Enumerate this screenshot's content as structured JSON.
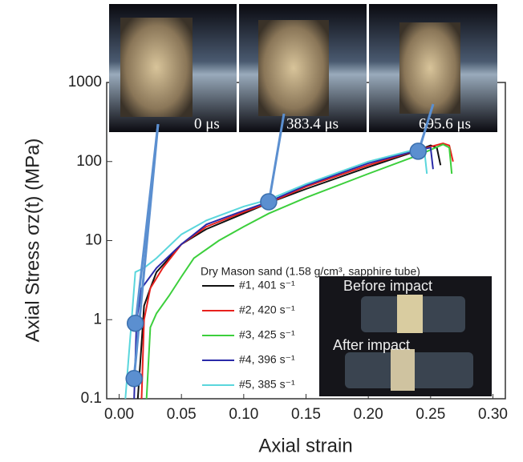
{
  "chart_data": {
    "type": "line",
    "x_label": "Axial strain",
    "y_label": "Axial Stress σz(t) (MPa)",
    "xlim": [
      -0.01,
      0.31
    ],
    "ylim": [
      0.1,
      1000
    ],
    "log_y": true,
    "grid": false,
    "xticks": [
      {
        "value": 0,
        "label": "0.00"
      },
      {
        "value": 0.05,
        "label": "0.05"
      },
      {
        "value": 0.1,
        "label": "0.10"
      },
      {
        "value": 0.15,
        "label": "0.15"
      },
      {
        "value": 0.2,
        "label": "0.20"
      },
      {
        "value": 0.25,
        "label": "0.25"
      },
      {
        "value": 0.3,
        "label": "0.30"
      }
    ],
    "yticks": [
      0.1,
      1,
      10,
      100,
      1000
    ],
    "legend_title": "Dry Mason sand (1.58 g/cm³, sapphire tube)",
    "series": [
      {
        "name": "#1, 401 s⁻¹",
        "color": "#111111",
        "x": [
          0.015,
          0.018,
          0.02,
          0.025,
          0.03,
          0.04,
          0.05,
          0.07,
          0.1,
          0.12,
          0.15,
          0.2,
          0.235,
          0.25,
          0.255,
          0.258
        ],
        "values": [
          0.1,
          0.5,
          1.5,
          2.5,
          4,
          6,
          9,
          14,
          22,
          30,
          45,
          85,
          130,
          160,
          150,
          90
        ]
      },
      {
        "name": "#2, 420 s⁻¹",
        "color": "#e8211d",
        "x": [
          0.018,
          0.02,
          0.025,
          0.035,
          0.05,
          0.07,
          0.1,
          0.12,
          0.15,
          0.2,
          0.24,
          0.26,
          0.265,
          0.268
        ],
        "values": [
          0.1,
          1,
          2.5,
          4.5,
          9,
          15,
          23,
          30,
          48,
          90,
          140,
          170,
          160,
          100
        ]
      },
      {
        "name": "#3, 425 s⁻¹",
        "color": "#3ccf3c",
        "x": [
          0.022,
          0.025,
          0.03,
          0.04,
          0.05,
          0.06,
          0.08,
          0.1,
          0.12,
          0.15,
          0.2,
          0.24,
          0.26,
          0.265,
          0.267
        ],
        "values": [
          0.1,
          0.8,
          1.2,
          2,
          3.5,
          6,
          10,
          15,
          22,
          35,
          70,
          120,
          165,
          150,
          70
        ]
      },
      {
        "name": "#4, 396 s⁻¹",
        "color": "#2a2aa8",
        "x": [
          0.012,
          0.014,
          0.018,
          0.03,
          0.05,
          0.07,
          0.1,
          0.12,
          0.15,
          0.2,
          0.24,
          0.25,
          0.252
        ],
        "values": [
          0.1,
          1,
          2.5,
          4.5,
          9,
          16,
          24,
          31,
          50,
          95,
          140,
          150,
          80
        ]
      },
      {
        "name": "#5, 385 s⁻¹",
        "color": "#5ad6dc",
        "x": [
          0.005,
          0.01,
          0.013,
          0.02,
          0.03,
          0.05,
          0.07,
          0.1,
          0.12,
          0.15,
          0.2,
          0.24,
          0.245,
          0.247
        ],
        "values": [
          0.1,
          1,
          4,
          4.5,
          6,
          12,
          18,
          27,
          33,
          52,
          100,
          145,
          140,
          70
        ]
      }
    ],
    "markers": {
      "color": "#5b8fd0",
      "x": [
        0.012,
        0.013,
        0.12,
        0.24
      ],
      "y": [
        0.18,
        0.9,
        31,
        135
      ]
    },
    "photo_labels": [
      "0 μs",
      "383.4 μs",
      "695.6 μs"
    ],
    "inset_labels": [
      "Before impact",
      "After impact"
    ]
  }
}
